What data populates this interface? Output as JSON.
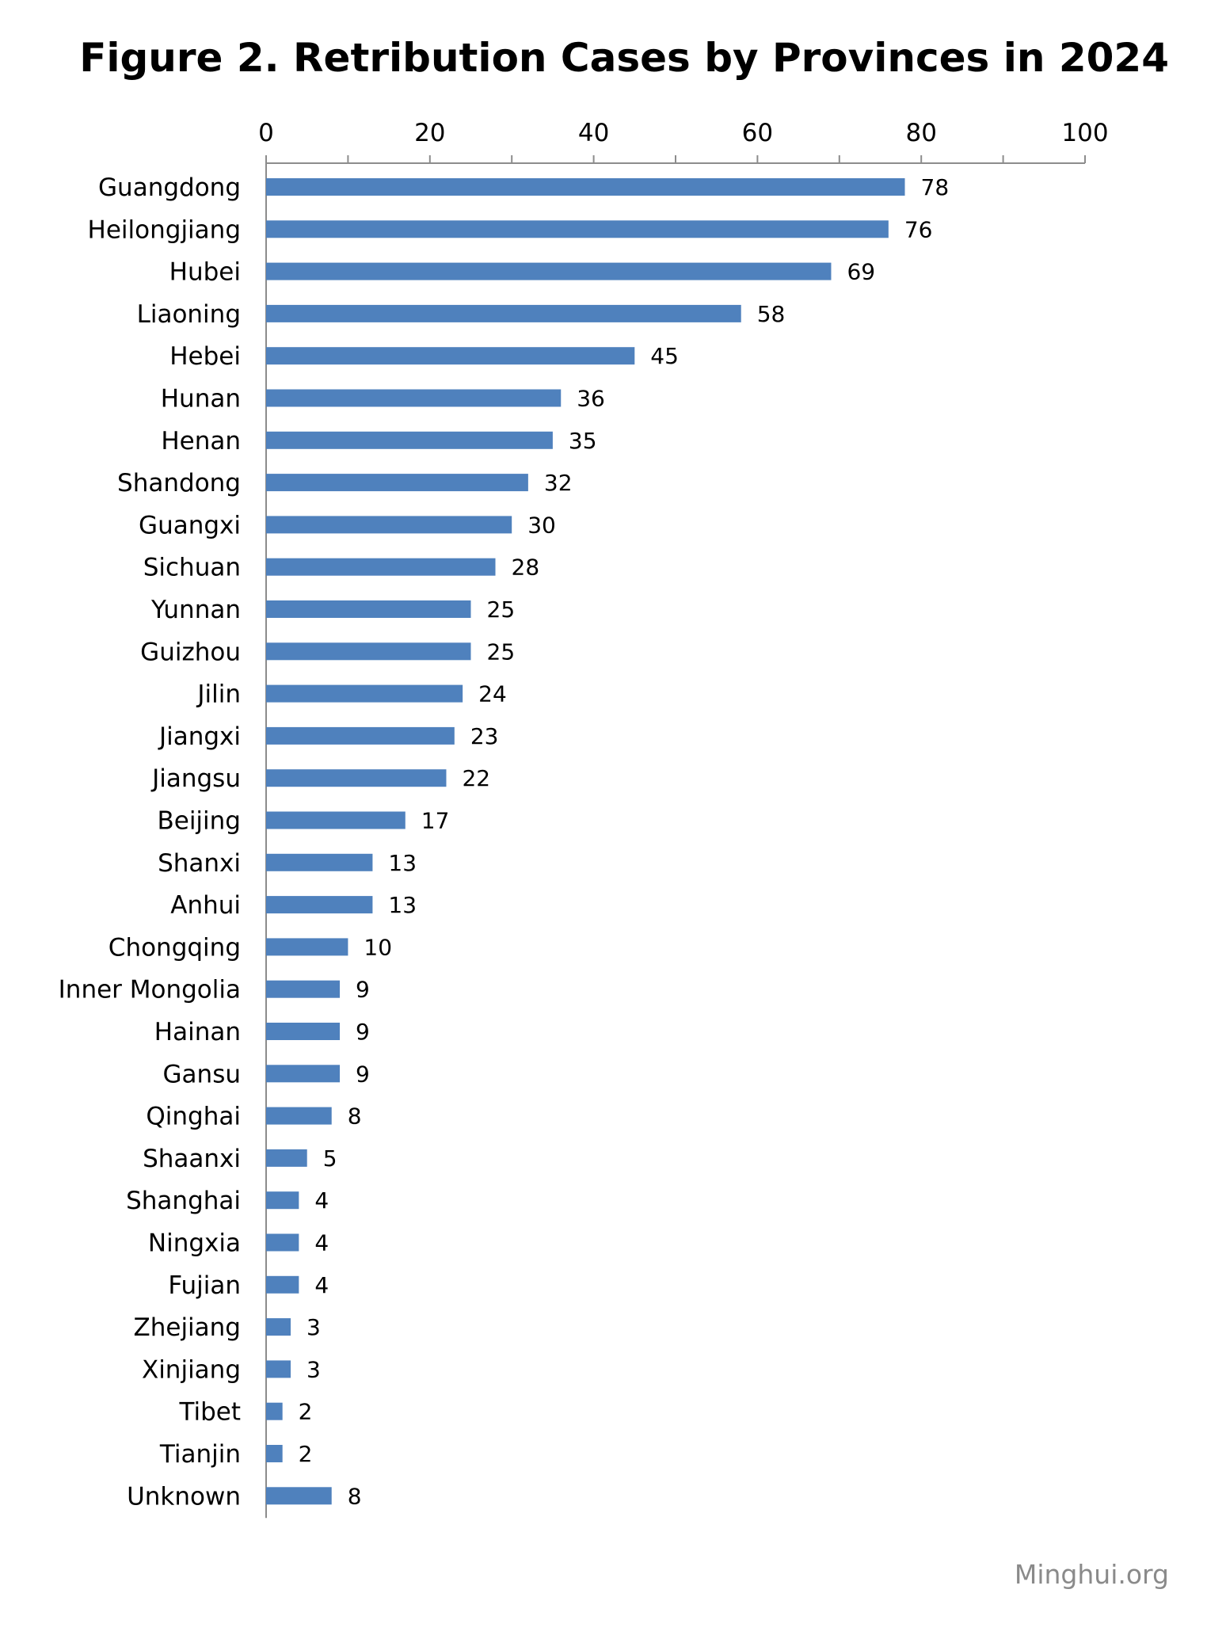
{
  "chart_data": {
    "type": "bar",
    "orientation": "horizontal",
    "title": "Figure 2. Retribution Cases by Provinces in 2024",
    "xlim": [
      0,
      100
    ],
    "x_ticks": [
      0,
      20,
      40,
      60,
      80,
      100
    ],
    "x_axis_position": "top",
    "grid": false,
    "legend": "none",
    "bar_color": "#4f81bd",
    "categories": [
      "Guangdong",
      "Heilongjiang",
      "Hubei",
      "Liaoning",
      "Hebei",
      "Hunan",
      "Henan",
      "Shandong",
      "Guangxi",
      "Sichuan",
      "Yunnan",
      "Guizhou",
      "Jilin",
      "Jiangxi",
      "Jiangsu",
      "Beijing",
      "Shanxi",
      "Anhui",
      "Chongqing",
      "Inner Mongolia",
      "Hainan",
      "Gansu",
      "Qinghai",
      "Shaanxi",
      "Shanghai",
      "Ningxia",
      "Fujian",
      "Zhejiang",
      "Xinjiang",
      "Tibet",
      "Tianjin",
      "Unknown"
    ],
    "values": [
      78,
      76,
      69,
      58,
      45,
      36,
      35,
      32,
      30,
      28,
      25,
      25,
      24,
      23,
      22,
      17,
      13,
      13,
      10,
      9,
      9,
      9,
      8,
      5,
      4,
      4,
      4,
      3,
      3,
      2,
      2,
      8
    ]
  },
  "source": "Minghui.org"
}
